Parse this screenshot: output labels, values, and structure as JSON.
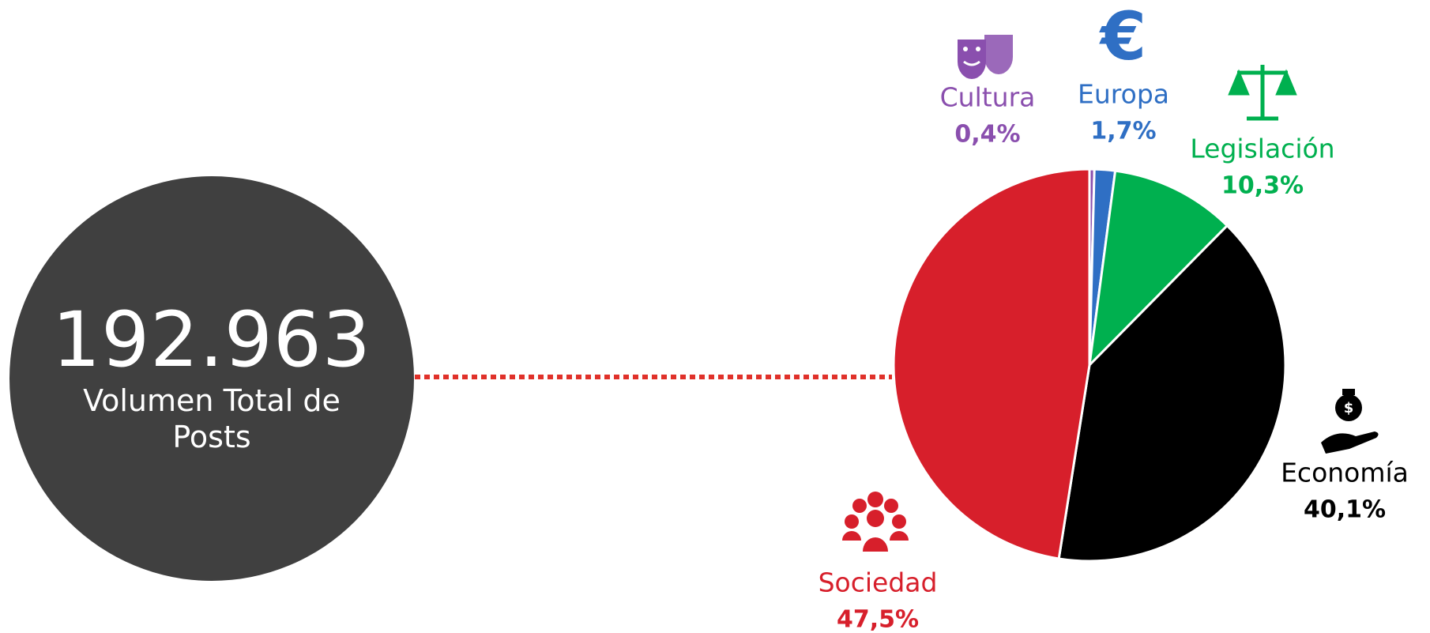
{
  "total": {
    "value": "192.963",
    "label": "Volumen Total de Posts"
  },
  "chart_data": {
    "type": "pie",
    "categories": [
      "Cultura",
      "Europa",
      "Legislación",
      "Economía",
      "Sociedad"
    ],
    "values": [
      0.4,
      1.7,
      10.3,
      40.1,
      47.5
    ],
    "value_labels": [
      "0,4%",
      "1,7%",
      "10,3%",
      "40,1%",
      "47,5%"
    ],
    "colors": [
      "#8a4fae",
      "#2f6fc4",
      "#00b04f",
      "#000000",
      "#d71f2b"
    ]
  }
}
